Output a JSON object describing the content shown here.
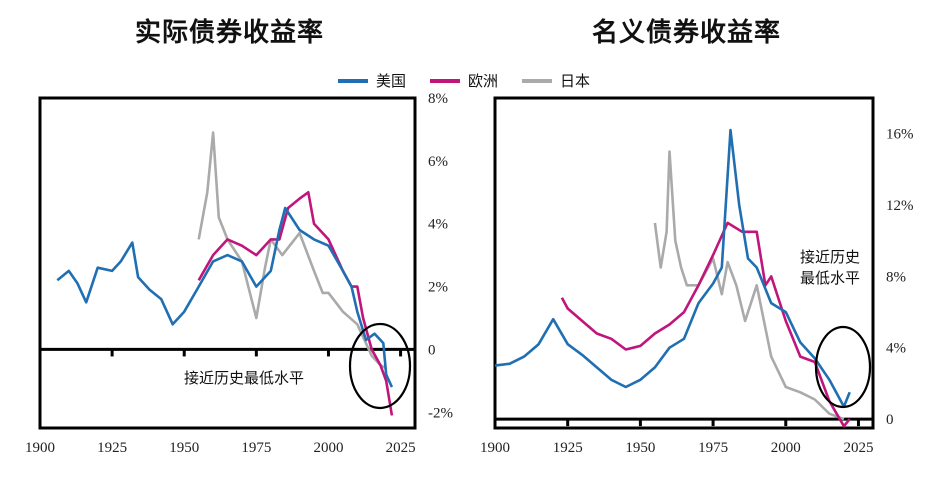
{
  "legend": {
    "items": [
      {
        "label": "美国",
        "color": "#1f6fb2"
      },
      {
        "label": "欧洲",
        "color": "#c0157a"
      },
      {
        "label": "日本",
        "color": "#aaaaaa"
      }
    ]
  },
  "chart_data": [
    {
      "type": "line",
      "title": "实际债券收益率",
      "xlabel": "",
      "ylabel": "",
      "xlim": [
        1900,
        2030
      ],
      "ylim": [
        -2.5,
        8
      ],
      "x_ticks": [
        "1900",
        "1925",
        "1950",
        "1975",
        "2000",
        "2025"
      ],
      "y_ticks": [
        "8%",
        "6%",
        "4%",
        "2%",
        "0",
        "-2%"
      ],
      "annotation": "接近历史最低水平",
      "series": [
        {
          "name": "美国",
          "color": "#1f6fb2",
          "x": [
            1906,
            1910,
            1913,
            1916,
            1920,
            1925,
            1928,
            1932,
            1934,
            1938,
            1942,
            1946,
            1950,
            1955,
            1960,
            1965,
            1970,
            1975,
            1980,
            1983,
            1985,
            1990,
            1995,
            2000,
            2005,
            2008,
            2010,
            2013,
            2016,
            2019,
            2020,
            2022
          ],
          "y": [
            2.2,
            2.5,
            2.1,
            1.5,
            2.6,
            2.5,
            2.8,
            3.4,
            2.3,
            1.9,
            1.6,
            0.8,
            1.2,
            2.0,
            2.8,
            3.0,
            2.8,
            2.0,
            2.5,
            3.8,
            4.5,
            3.8,
            3.5,
            3.3,
            2.5,
            2.0,
            1.2,
            0.3,
            0.5,
            0.2,
            -0.8,
            -1.2
          ]
        },
        {
          "name": "欧洲",
          "color": "#c0157a",
          "x": [
            1955,
            1960,
            1965,
            1970,
            1975,
            1980,
            1983,
            1986,
            1990,
            1993,
            1995,
            2000,
            2005,
            2008,
            2010,
            2012,
            2015,
            2018,
            2020,
            2022
          ],
          "y": [
            2.2,
            3.0,
            3.5,
            3.3,
            3.0,
            3.5,
            3.5,
            4.5,
            4.8,
            5.0,
            4.0,
            3.5,
            2.5,
            2.0,
            2.0,
            1.0,
            0.0,
            -0.5,
            -1.0,
            -2.1
          ]
        },
        {
          "name": "日本",
          "color": "#aaaaaa",
          "x": [
            1955,
            1958,
            1960,
            1962,
            1965,
            1970,
            1975,
            1978,
            1980,
            1984,
            1990,
            1995,
            1998,
            2000,
            2005,
            2010,
            2015,
            2018,
            2020
          ],
          "y": [
            3.5,
            5.0,
            6.9,
            4.2,
            3.5,
            2.8,
            1.0,
            2.6,
            3.5,
            3.0,
            3.7,
            2.5,
            1.8,
            1.8,
            1.2,
            0.8,
            -0.2,
            -0.5,
            -0.6
          ]
        }
      ]
    },
    {
      "type": "line",
      "title": "名义债券收益率",
      "xlabel": "",
      "ylabel": "",
      "xlim": [
        1900,
        2030
      ],
      "ylim": [
        -0.5,
        18
      ],
      "x_ticks": [
        "1900",
        "1925",
        "1950",
        "1975",
        "2000",
        "2025"
      ],
      "y_ticks": [
        "16%",
        "12%",
        "8%",
        "4%",
        "0"
      ],
      "annotation": "接近历史\n最低水平",
      "series": [
        {
          "name": "美国",
          "color": "#1f6fb2",
          "x": [
            1900,
            1905,
            1910,
            1915,
            1920,
            1925,
            1930,
            1935,
            1940,
            1945,
            1950,
            1955,
            1960,
            1965,
            1970,
            1975,
            1978,
            1981,
            1984,
            1987,
            1990,
            1995,
            2000,
            2005,
            2010,
            2015,
            2020,
            2022
          ],
          "y": [
            3.0,
            3.1,
            3.5,
            4.2,
            5.6,
            4.2,
            3.6,
            2.9,
            2.2,
            1.8,
            2.2,
            2.9,
            4.0,
            4.5,
            6.5,
            7.6,
            8.5,
            16.2,
            12.0,
            9.0,
            8.5,
            6.5,
            6.0,
            4.3,
            3.4,
            2.2,
            0.7,
            1.5
          ]
        },
        {
          "name": "欧洲",
          "color": "#c0157a",
          "x": [
            1923,
            1925,
            1930,
            1935,
            1940,
            1945,
            1950,
            1955,
            1960,
            1965,
            1970,
            1975,
            1980,
            1985,
            1990,
            1993,
            1995,
            2000,
            2005,
            2010,
            2015,
            2020,
            2022
          ],
          "y": [
            6.8,
            6.2,
            5.5,
            4.8,
            4.5,
            3.9,
            4.1,
            4.8,
            5.3,
            6.0,
            7.5,
            9.2,
            11.0,
            10.5,
            10.5,
            7.5,
            8.0,
            5.5,
            3.5,
            3.2,
            1.0,
            -0.4,
            0.0
          ]
        },
        {
          "name": "日本",
          "color": "#aaaaaa",
          "x": [
            1955,
            1957,
            1959,
            1960,
            1962,
            1964,
            1966,
            1970,
            1975,
            1978,
            1980,
            1983,
            1986,
            1990,
            1995,
            2000,
            2005,
            2010,
            2015,
            2020
          ],
          "y": [
            11.0,
            8.5,
            10.5,
            15.0,
            10.0,
            8.5,
            7.5,
            7.5,
            9.0,
            7.0,
            8.8,
            7.5,
            5.5,
            7.5,
            3.5,
            1.8,
            1.5,
            1.1,
            0.3,
            0.0
          ]
        }
      ]
    }
  ]
}
